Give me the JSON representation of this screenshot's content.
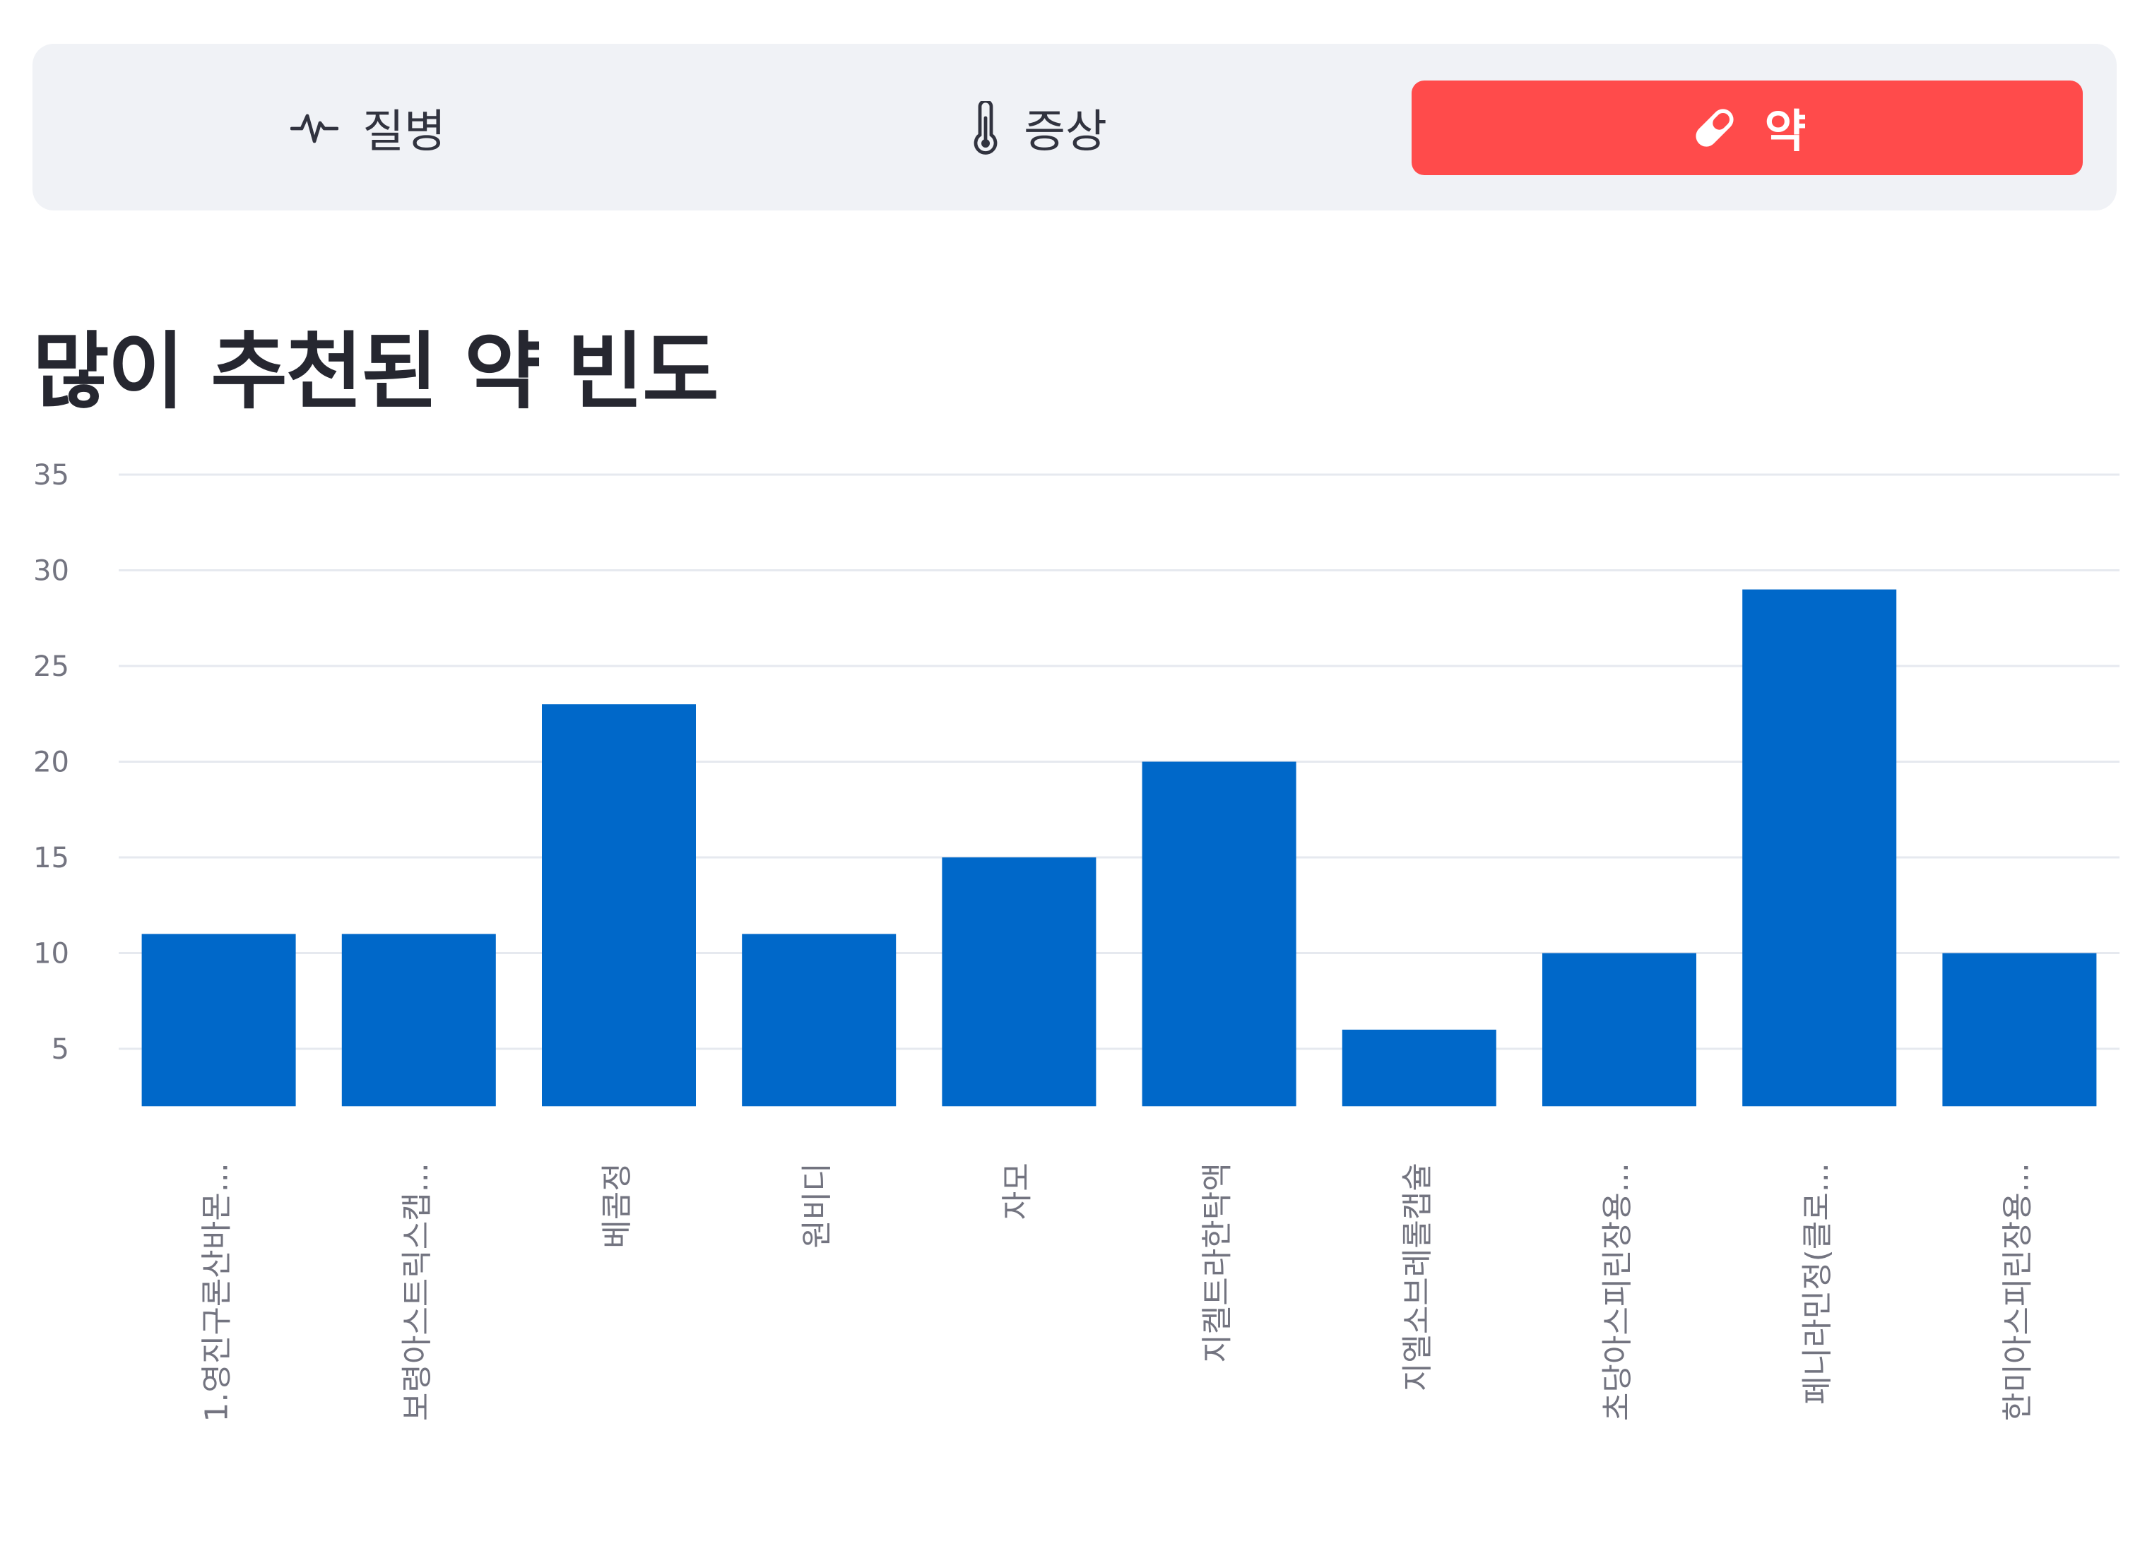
{
  "tabs": [
    {
      "label": "질병",
      "icon": "pulse-icon",
      "active": false
    },
    {
      "label": "증상",
      "icon": "thermometer-icon",
      "active": false
    },
    {
      "label": "약",
      "icon": "pill-icon",
      "active": true
    }
  ],
  "colors": {
    "accent": "#ff4b4b",
    "bar": "#0068c9",
    "tab_background": "#f0f2f6",
    "gridline": "#e6e9ef",
    "axis_text": "#737480"
  },
  "chart_data": {
    "type": "bar",
    "title": "많이 추천된 약 빈도",
    "xlabel": "",
    "ylabel": "",
    "categories": [
      "1.영진구론산바몬...",
      "보령아스트릭스캡...",
      "베콤정",
      "원비디",
      "자모",
      "지켈트라한탁액",
      "지엘소브레롤캡슐",
      "초당아스피린장용...",
      "페니라민정(클로...",
      "한미아스피린장용..."
    ],
    "values": [
      11,
      11,
      23,
      11,
      15,
      20,
      6,
      10,
      29,
      10
    ],
    "y_ticks": [
      5,
      10,
      15,
      20,
      25,
      30,
      35
    ],
    "ylim": [
      2,
      35
    ],
    "grid": true,
    "legend": "none"
  }
}
